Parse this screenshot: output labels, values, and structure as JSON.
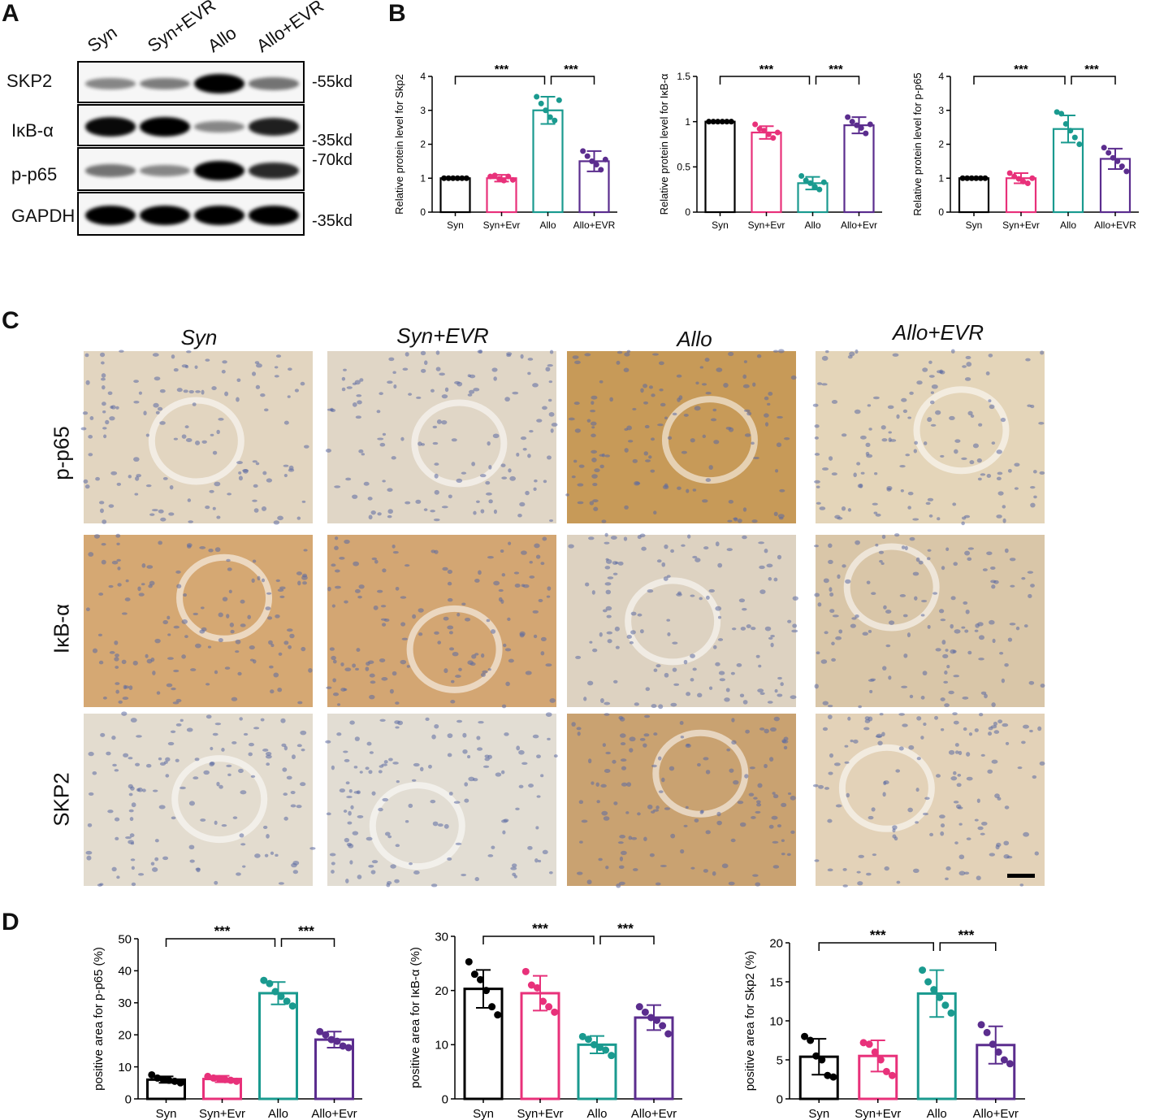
{
  "panels": {
    "a": "A",
    "b": "B",
    "c": "C",
    "d": "D"
  },
  "western": {
    "lanes": [
      "Syn",
      "Syn+EVR",
      "Allo",
      "Allo+EVR"
    ],
    "rows": [
      {
        "name": "SKP2",
        "intensity": [
          0.35,
          0.4,
          1.0,
          0.45
        ]
      },
      {
        "name": "IκB-α",
        "intensity": [
          0.95,
          1.0,
          0.35,
          0.85
        ]
      },
      {
        "name": "p-p65",
        "intensity": [
          0.45,
          0.35,
          1.0,
          0.8
        ]
      },
      {
        "name": "GAPDH",
        "intensity": [
          1.0,
          1.0,
          1.0,
          1.0
        ]
      }
    ],
    "kd_labels": [
      "-55kd",
      "-35kd",
      "-70kd",
      "-35kd"
    ]
  },
  "ihc": {
    "columns": [
      "Syn",
      "Syn+EVR",
      "Allo",
      "Allo+EVR"
    ],
    "rows": [
      "p-p65",
      "IκB-α",
      "SKP2"
    ],
    "tiles": [
      [
        "#e2d5c0",
        "#e0d6c6",
        "#c79a58",
        "#e4d5b9"
      ],
      [
        "#d5a873",
        "#d3a673",
        "#ddd2c1",
        "#d9c6a8"
      ],
      [
        "#e3dccf",
        "#e2ddd3",
        "#c9a271",
        "#e3d2b8"
      ]
    ],
    "nucleus_color": "#5b6aa3"
  },
  "colors": {
    "Syn": "#000000",
    "Syn+Evr": "#e8317a",
    "Allo": "#1a9a8f",
    "Allo+Evr": "#5b2d8e"
  },
  "chart_data": [
    {
      "id": "B1",
      "type": "bar",
      "ylabel": "Relative protein level  for Skp2",
      "categories": [
        "Syn",
        "Syn+Evr",
        "Allo",
        "Allo+EVR"
      ],
      "values": [
        1.0,
        1.0,
        3.0,
        1.5
      ],
      "errors": [
        0,
        0.1,
        0.4,
        0.3
      ],
      "points": [
        [
          1,
          1,
          1,
          1,
          1,
          1
        ],
        [
          1.05,
          1.08,
          0.98,
          0.93,
          1.05,
          0.95
        ],
        [
          3.4,
          3.2,
          3.0,
          2.8,
          2.7,
          3.3
        ],
        [
          1.8,
          1.65,
          1.5,
          1.4,
          1.25,
          1.55
        ]
      ],
      "ylim": [
        0,
        4
      ],
      "yticks": [
        0,
        1,
        2,
        3,
        4
      ],
      "significance": [
        "***",
        "***"
      ]
    },
    {
      "id": "B2",
      "type": "bar",
      "ylabel": "Relative protein level  for IκB-α",
      "categories": [
        "Syn",
        "Syn+Evr",
        "Allo",
        "Allo+Evr"
      ],
      "values": [
        1.0,
        0.88,
        0.32,
        0.96
      ],
      "errors": [
        0,
        0.07,
        0.07,
        0.09
      ],
      "points": [
        [
          1,
          1,
          1,
          1,
          1,
          1
        ],
        [
          0.97,
          0.92,
          0.9,
          0.86,
          0.82,
          0.88
        ],
        [
          0.4,
          0.35,
          0.32,
          0.28,
          0.25,
          0.33
        ],
        [
          1.05,
          1.0,
          0.96,
          0.93,
          0.87,
          0.97
        ]
      ],
      "ylim": [
        0,
        1.5
      ],
      "yticks": [
        0.0,
        0.5,
        1.0,
        1.5
      ],
      "significance": [
        "***",
        "***"
      ]
    },
    {
      "id": "B3",
      "type": "bar",
      "ylabel": "Relative protein level  for p-p65",
      "categories": [
        "Syn",
        "Syn+Evr",
        "Allo",
        "Allo+EVR"
      ],
      "values": [
        1.0,
        1.0,
        2.45,
        1.57
      ],
      "errors": [
        0,
        0.15,
        0.4,
        0.3
      ],
      "points": [
        [
          1,
          1,
          1,
          1,
          1,
          1
        ],
        [
          1.15,
          1.05,
          0.98,
          0.9,
          0.85,
          1.0
        ],
        [
          2.95,
          2.9,
          2.6,
          2.4,
          2.2,
          2.0
        ],
        [
          1.9,
          1.75,
          1.6,
          1.5,
          1.35,
          1.2
        ]
      ],
      "ylim": [
        0,
        4
      ],
      "yticks": [
        0,
        1,
        2,
        3,
        4
      ],
      "significance": [
        "***",
        "***"
      ]
    },
    {
      "id": "D1",
      "type": "bar",
      "ylabel": "positive area for p-p65 (%)",
      "categories": [
        "Syn",
        "Syn+Evr",
        "Allo",
        "Allo+Evr"
      ],
      "values": [
        6.0,
        6.2,
        33.0,
        18.5
      ],
      "errors": [
        1.0,
        1.0,
        3.5,
        2.5
      ],
      "points": [
        [
          7.5,
          6.5,
          6.0,
          5.8,
          5.5,
          5.0
        ],
        [
          7.0,
          6.5,
          6.3,
          6.0,
          5.8,
          5.5
        ],
        [
          37.0,
          36.0,
          33.5,
          32.0,
          30.5,
          29.0
        ],
        [
          21.0,
          20.0,
          18.5,
          18.0,
          16.5,
          16.0
        ]
      ],
      "ylim": [
        0,
        50
      ],
      "yticks": [
        0,
        10,
        20,
        30,
        40,
        50
      ],
      "significance": [
        "***",
        "***"
      ]
    },
    {
      "id": "D2",
      "type": "bar",
      "ylabel": "positive area for IκB-α (%)",
      "categories": [
        "Syn",
        "Syn+Evr",
        "Allo",
        "Allo+Evr"
      ],
      "values": [
        20.3,
        19.5,
        10.0,
        15.0
      ],
      "errors": [
        3.5,
        3.2,
        1.6,
        2.3
      ],
      "points": [
        [
          25.3,
          23.0,
          22.0,
          20.0,
          17.0,
          15.5
        ],
        [
          23.5,
          21.0,
          20.5,
          18.0,
          17.0,
          16.0
        ],
        [
          11.5,
          11.0,
          10.0,
          9.5,
          9.0,
          8.0
        ],
        [
          17.0,
          16.0,
          15.0,
          14.5,
          13.5,
          12.0
        ]
      ],
      "ylim": [
        0,
        30
      ],
      "yticks": [
        0,
        10,
        20,
        30
      ],
      "significance": [
        "***",
        "***"
      ]
    },
    {
      "id": "D3",
      "type": "bar",
      "ylabel": "positive area for Skp2 (%)",
      "categories": [
        "Syn",
        "Syn+Evr",
        "Allo",
        "Allo+Evr"
      ],
      "values": [
        5.4,
        5.5,
        13.5,
        6.9
      ],
      "errors": [
        2.3,
        2.0,
        3.0,
        2.4
      ],
      "points": [
        [
          8.0,
          7.5,
          5.5,
          5.0,
          3.0,
          2.8
        ],
        [
          7.2,
          7.0,
          6.0,
          5.0,
          3.5,
          3.0
        ],
        [
          16.5,
          15.0,
          14.0,
          13.0,
          12.0,
          11.0
        ],
        [
          9.5,
          8.5,
          7.0,
          6.0,
          5.0,
          4.5
        ]
      ],
      "ylim": [
        0,
        20
      ],
      "yticks": [
        0,
        5,
        10,
        15,
        20
      ],
      "significance": [
        "***",
        "***"
      ]
    }
  ]
}
